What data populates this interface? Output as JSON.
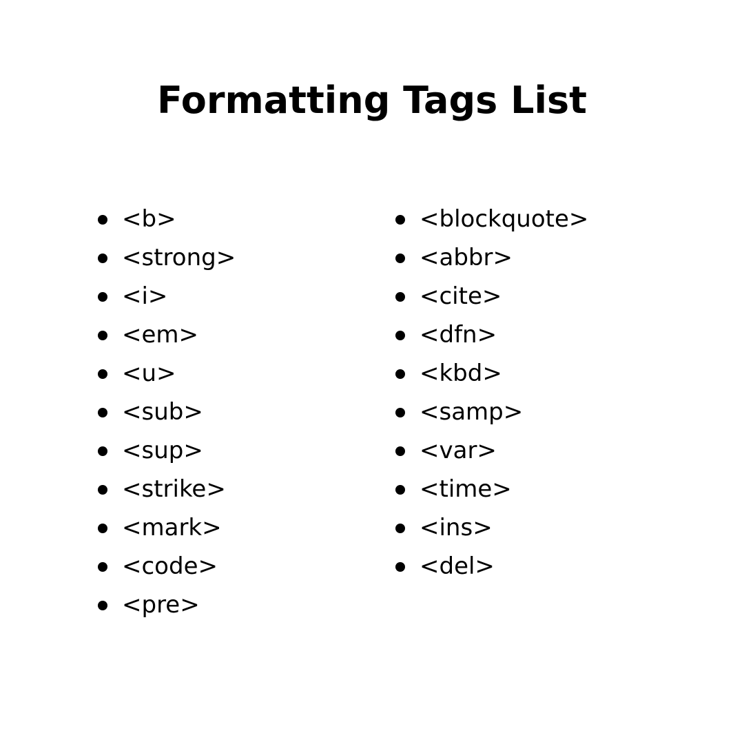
{
  "title": "Formatting Tags List",
  "columns": [
    {
      "items": [
        "<b>",
        "<strong>",
        "<i>",
        "<em>",
        "<u>",
        "<sub>",
        "<sup>",
        "<strike>",
        "<mark>",
        "<code>",
        "<pre>"
      ]
    },
    {
      "items": [
        "<blockquote>",
        "<abbr>",
        "<cite>",
        "<dfn>",
        "<kbd>",
        "<samp>",
        "<var>",
        "<time>",
        "<ins>",
        "<del>"
      ]
    }
  ],
  "colors": {
    "background": "#ffffff",
    "text": "#000000"
  }
}
